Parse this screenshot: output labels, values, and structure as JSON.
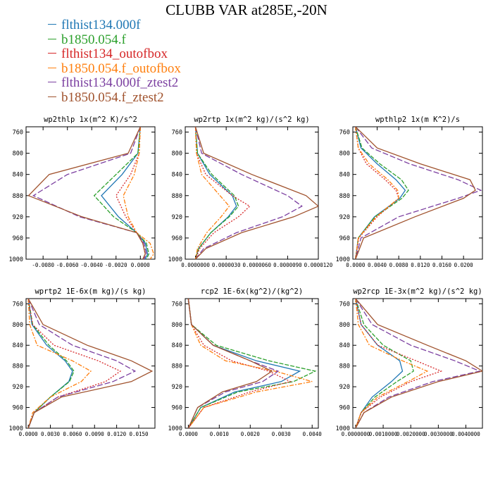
{
  "title": "CLUBB VAR at285E,-20N",
  "legend": [
    {
      "name": "flthist134.000f",
      "color": "#1f77b4"
    },
    {
      "name": "b1850.054.f",
      "color": "#2ca02c"
    },
    {
      "name": "flthist134_outofbox",
      "color": "#d62728"
    },
    {
      "name": "b1850.054.f_outofbox",
      "color": "#ff7f0e"
    },
    {
      "name": "flthist134.000f_ztest2",
      "color": "#7b3fa0"
    },
    {
      "name": "b1850.054.f_ztest2",
      "color": "#a0522d"
    }
  ],
  "chart_data": [
    {
      "type": "line",
      "title": "wp2thlp  1x(m^2 K)/s^2",
      "xlim": [
        -0.0094,
        0.0012
      ],
      "xticks": [
        -0.008,
        -0.006,
        -0.004,
        -0.002,
        0.0
      ],
      "xticklabels": [
        "-0.0080",
        "-0.0060",
        "-0.0040",
        "-0.0020",
        "0.0000"
      ],
      "ylim": [
        1000,
        750
      ],
      "yticks": [
        760,
        800,
        840,
        880,
        920,
        960,
        1000
      ],
      "yticklabels": [
        "760",
        "800",
        "840",
        "880",
        "920",
        "960",
        "1000"
      ],
      "y": [
        750,
        800,
        840,
        880,
        920,
        950,
        970,
        990,
        1000
      ],
      "series": [
        {
          "name": "flthist134.000f",
          "x": [
            0.0,
            -0.0002,
            -0.0015,
            -0.0032,
            -0.0018,
            -0.0003,
            0.0004,
            0.0006,
            0.0004
          ]
        },
        {
          "name": "b1850.054.f",
          "x": [
            0.0,
            -0.0002,
            -0.002,
            -0.0038,
            -0.0022,
            -0.0003,
            0.0005,
            0.0007,
            0.0005
          ]
        },
        {
          "name": "flthist134_outofbox",
          "x": [
            0.0,
            -0.0001,
            -0.0008,
            -0.002,
            -0.0012,
            -0.0003,
            0.0002,
            0.0004,
            0.0003
          ]
        },
        {
          "name": "b1850.054.f_outofbox",
          "x": [
            0.0,
            -0.0001,
            -0.0005,
            -0.0014,
            -0.001,
            -0.0003,
            0.0008,
            0.0011,
            0.0008
          ]
        },
        {
          "name": "flthist134.000f_ztest2",
          "x": [
            0.0,
            -0.0008,
            -0.006,
            -0.0088,
            -0.005,
            -0.0003,
            0.0003,
            0.0005,
            0.0003
          ]
        },
        {
          "name": "b1850.054.f_ztest2",
          "x": [
            0.0,
            -0.001,
            -0.0075,
            -0.0092,
            -0.0048,
            -0.0003,
            0.0002,
            0.0004,
            0.0002
          ]
        }
      ]
    },
    {
      "type": "line",
      "title": "wp2rtp  1x(m^2 kg)/(s^2 kg)",
      "xlim": [
        -1e-06,
        1.2e-05
      ],
      "xticks": [
        0.0,
        3e-06,
        6e-06,
        9e-06,
        1.2e-05
      ],
      "xticklabels": [
        "0.0000000",
        "0.0000030",
        "0.0000060",
        "0.0000090",
        "0.0000120"
      ],
      "ylim": [
        1000,
        750
      ],
      "yticks": [
        760,
        800,
        840,
        880,
        920,
        960,
        1000
      ],
      "yticklabels": [
        "760",
        "800",
        "840",
        "880",
        "920",
        "960",
        "1000"
      ],
      "y": [
        750,
        800,
        840,
        880,
        900,
        920,
        950,
        980,
        1000
      ],
      "series": [
        {
          "name": "flthist134.000f",
          "x": [
            0.0,
            2e-07,
            1.4e-06,
            3.6e-06,
            4e-06,
            3.2e-06,
            1.5e-06,
            3e-07,
            0.0
          ],
          "y": [
            750,
            800,
            840,
            880,
            900,
            920,
            950,
            980,
            1000
          ]
        },
        {
          "name": "b1850.054.f",
          "x": [
            0.0,
            2e-07,
            1.6e-06,
            3.8e-06,
            4.2e-06,
            3.3e-06,
            1.5e-06,
            3e-07,
            0.0
          ],
          "y": [
            750,
            800,
            840,
            880,
            900,
            920,
            950,
            980,
            1000
          ]
        },
        {
          "name": "flthist134_outofbox",
          "x": [
            0.0,
            1e-07,
            1e-06,
            3.6e-06,
            5.3e-06,
            4.2e-06,
            1.8e-06,
            4e-07,
            0.0
          ],
          "y": [
            750,
            800,
            840,
            880,
            900,
            920,
            950,
            980,
            1000
          ]
        },
        {
          "name": "b1850.054.f_outofbox",
          "x": [
            0.0,
            1e-07,
            6e-07,
            2.4e-06,
            3.3e-06,
            2.5e-06,
            1.1e-06,
            2e-07,
            0.0
          ],
          "y": [
            750,
            800,
            840,
            880,
            900,
            920,
            950,
            980,
            1000
          ]
        },
        {
          "name": "flthist134.000f_ztest2",
          "x": [
            0.0,
            6e-07,
            4.5e-06,
            9e-06,
            1.04e-05,
            8.5e-06,
            4e-06,
            8e-07,
            0.0
          ],
          "y": [
            750,
            800,
            840,
            880,
            900,
            920,
            950,
            980,
            1000
          ]
        },
        {
          "name": "b1850.054.f_ztest2",
          "x": [
            0.0,
            8e-07,
            5.5e-06,
            1.08e-05,
            1.2e-05,
            9.6e-06,
            4.5e-06,
            1e-06,
            0.0
          ],
          "y": [
            750,
            800,
            840,
            880,
            900,
            920,
            950,
            980,
            1000
          ]
        }
      ]
    },
    {
      "type": "line",
      "title": "wpthlp2  1x(m K^2)/s",
      "xlim": [
        -0.0005,
        0.0235
      ],
      "xticks": [
        0.0,
        0.004,
        0.008,
        0.012,
        0.016,
        0.02
      ],
      "xticklabels": [
        "0.0000",
        "0.0040",
        "0.0080",
        "0.0120",
        "0.0160",
        "0.0200"
      ],
      "ylim": [
        1000,
        750
      ],
      "yticks": [
        760,
        800,
        840,
        880,
        920,
        960,
        1000
      ],
      "yticklabels": [
        "760",
        "800",
        "840",
        "880",
        "920",
        "960",
        "1000"
      ],
      "y": [
        750,
        790,
        820,
        850,
        870,
        885,
        920,
        960,
        1000
      ],
      "series": [
        {
          "name": "flthist134.000f",
          "x": [
            0.0,
            0.001,
            0.004,
            0.0075,
            0.0092,
            0.0082,
            0.0035,
            0.0005,
            0.0
          ]
        },
        {
          "name": "b1850.054.f",
          "x": [
            0.0,
            0.0012,
            0.0045,
            0.0085,
            0.0098,
            0.0086,
            0.0036,
            0.0005,
            0.0
          ]
        },
        {
          "name": "flthist134_outofbox",
          "x": [
            0.0,
            0.0005,
            0.002,
            0.0055,
            0.0075,
            0.008,
            0.004,
            0.0006,
            0.0
          ]
        },
        {
          "name": "b1850.054.f_outofbox",
          "x": [
            0.0,
            0.0005,
            0.0025,
            0.006,
            0.0078,
            0.008,
            0.0038,
            0.0005,
            0.0
          ]
        },
        {
          "name": "flthist134.000f_ztest2",
          "x": [
            0.0,
            0.003,
            0.01,
            0.019,
            0.0232,
            0.019,
            0.008,
            0.001,
            0.0
          ]
        },
        {
          "name": "b1850.054.f_ztest2",
          "x": [
            0.0,
            0.004,
            0.012,
            0.0212,
            0.0222,
            0.02,
            0.011,
            0.0015,
            0.0
          ]
        }
      ]
    },
    {
      "type": "line",
      "title": "wprtp2  1E-6x(m kg)/(s kg)",
      "xlim": [
        -0.0003,
        0.0172
      ],
      "xticks": [
        0.0,
        0.003,
        0.006,
        0.009,
        0.012,
        0.015
      ],
      "xticklabels": [
        "0.0000",
        "0.0030",
        "0.0060",
        "0.0090",
        "0.0120",
        "0.0150"
      ],
      "ylim": [
        1000,
        750
      ],
      "yticks": [
        760,
        800,
        840,
        880,
        920,
        960,
        1000
      ],
      "yticklabels": [
        "760",
        "800",
        "840",
        "880",
        "920",
        "960",
        "1000"
      ],
      "y": [
        750,
        800,
        840,
        870,
        890,
        910,
        940,
        970,
        1000
      ],
      "series": [
        {
          "name": "flthist134.000f",
          "x": [
            0.0,
            0.0005,
            0.0025,
            0.005,
            0.006,
            0.0055,
            0.003,
            0.0008,
            0.0
          ]
        },
        {
          "name": "b1850.054.f",
          "x": [
            0.0,
            0.0006,
            0.0028,
            0.0052,
            0.0062,
            0.0056,
            0.003,
            0.0008,
            0.0
          ]
        },
        {
          "name": "flthist134_outofbox",
          "x": [
            0.0,
            0.0006,
            0.0035,
            0.0095,
            0.0125,
            0.0105,
            0.004,
            0.0008,
            0.0
          ]
        },
        {
          "name": "b1850.054.f_outofbox",
          "x": [
            0.0,
            0.0002,
            0.0012,
            0.006,
            0.0085,
            0.0072,
            0.003,
            0.0006,
            0.0
          ]
        },
        {
          "name": "flthist134.000f_ztest2",
          "x": [
            0.0,
            0.0015,
            0.006,
            0.012,
            0.0145,
            0.0115,
            0.004,
            0.0008,
            0.0
          ]
        },
        {
          "name": "b1850.054.f_ztest2",
          "x": [
            0.0,
            0.002,
            0.008,
            0.014,
            0.0168,
            0.014,
            0.0045,
            0.0008,
            0.0
          ]
        }
      ]
    },
    {
      "type": "line",
      "title": "rcp2  1E-6x(kg^2)/(kg^2)",
      "xlim": [
        -0.0001,
        0.0042
      ],
      "xticks": [
        0.0,
        0.001,
        0.002,
        0.003,
        0.004
      ],
      "xticklabels": [
        "0.0000",
        "0.0010",
        "0.0020",
        "0.0030",
        "0.0040"
      ],
      "ylim": [
        1000,
        750
      ],
      "yticks": [
        760,
        800,
        840,
        880,
        920,
        960,
        1000
      ],
      "yticklabels": [
        "760",
        "800",
        "840",
        "880",
        "920",
        "960",
        "1000"
      ],
      "y": [
        750,
        800,
        840,
        870,
        890,
        910,
        930,
        960,
        1000
      ],
      "series": [
        {
          "name": "flthist134.000f",
          "x": [
            0.0,
            0.0001,
            0.0008,
            0.0022,
            0.0036,
            0.003,
            0.0015,
            0.0004,
            0.0
          ]
        },
        {
          "name": "b1850.054.f",
          "x": [
            0.0,
            0.0001,
            0.0009,
            0.0026,
            0.0041,
            0.0034,
            0.0016,
            0.0004,
            0.0
          ]
        },
        {
          "name": "flthist134_outofbox",
          "x": [
            0.0,
            0.0001,
            0.0005,
            0.0014,
            0.0026,
            0.0033,
            0.002,
            0.0005,
            0.0
          ]
        },
        {
          "name": "b1850.054.f_outofbox",
          "x": [
            0.0,
            0.0001,
            0.0004,
            0.0012,
            0.0028,
            0.004,
            0.0022,
            0.0005,
            0.0
          ]
        },
        {
          "name": "flthist134.000f_ztest2",
          "x": [
            0.0,
            0.0001,
            0.0008,
            0.002,
            0.0029,
            0.0024,
            0.0012,
            0.0003,
            0.0
          ]
        },
        {
          "name": "b1850.054.f_ztest2",
          "x": [
            0.0,
            0.0001,
            0.0008,
            0.002,
            0.0027,
            0.0022,
            0.0011,
            0.0003,
            0.0
          ]
        }
      ]
    },
    {
      "type": "line",
      "title": "wp2rcp  1E-3x(m^2 kg)/(s^2 kg)",
      "xlim": [
        -0.0001,
        0.0046
      ],
      "xticks": [
        0.0,
        0.001,
        0.002,
        0.003,
        0.004
      ],
      "xticklabels": [
        "0.0000000",
        "0.0010000",
        "0.0020000",
        "0.0030000",
        "0.0040000"
      ],
      "ylim": [
        1000,
        750
      ],
      "yticks": [
        760,
        800,
        840,
        880,
        920,
        960,
        1000
      ],
      "yticklabels": [
        "760",
        "800",
        "840",
        "880",
        "920",
        "960",
        "1000"
      ],
      "y": [
        750,
        800,
        840,
        870,
        890,
        910,
        940,
        970,
        1000
      ],
      "series": [
        {
          "name": "flthist134.000f",
          "x": [
            0.0,
            0.0002,
            0.0008,
            0.0016,
            0.0017,
            0.0013,
            0.0006,
            0.0002,
            0.0
          ]
        },
        {
          "name": "b1850.054.f",
          "x": [
            0.0,
            0.0003,
            0.001,
            0.002,
            0.0021,
            0.0015,
            0.0007,
            0.0002,
            0.0
          ]
        },
        {
          "name": "flthist134_outofbox",
          "x": [
            0.0,
            0.0002,
            0.0008,
            0.0022,
            0.0031,
            0.002,
            0.0009,
            0.0002,
            0.0
          ]
        },
        {
          "name": "b1850.054.f_outofbox",
          "x": [
            0.0,
            0.0001,
            0.0005,
            0.0017,
            0.0026,
            0.0019,
            0.0008,
            0.0002,
            0.0
          ]
        },
        {
          "name": "flthist134.000f_ztest2",
          "x": [
            0.0,
            0.0006,
            0.002,
            0.0036,
            0.0045,
            0.0028,
            0.0012,
            0.0003,
            0.0
          ]
        },
        {
          "name": "b1850.054.f_ztest2",
          "x": [
            0.0,
            0.0008,
            0.0026,
            0.004,
            0.0046,
            0.003,
            0.0013,
            0.0003,
            0.0
          ]
        }
      ]
    }
  ]
}
